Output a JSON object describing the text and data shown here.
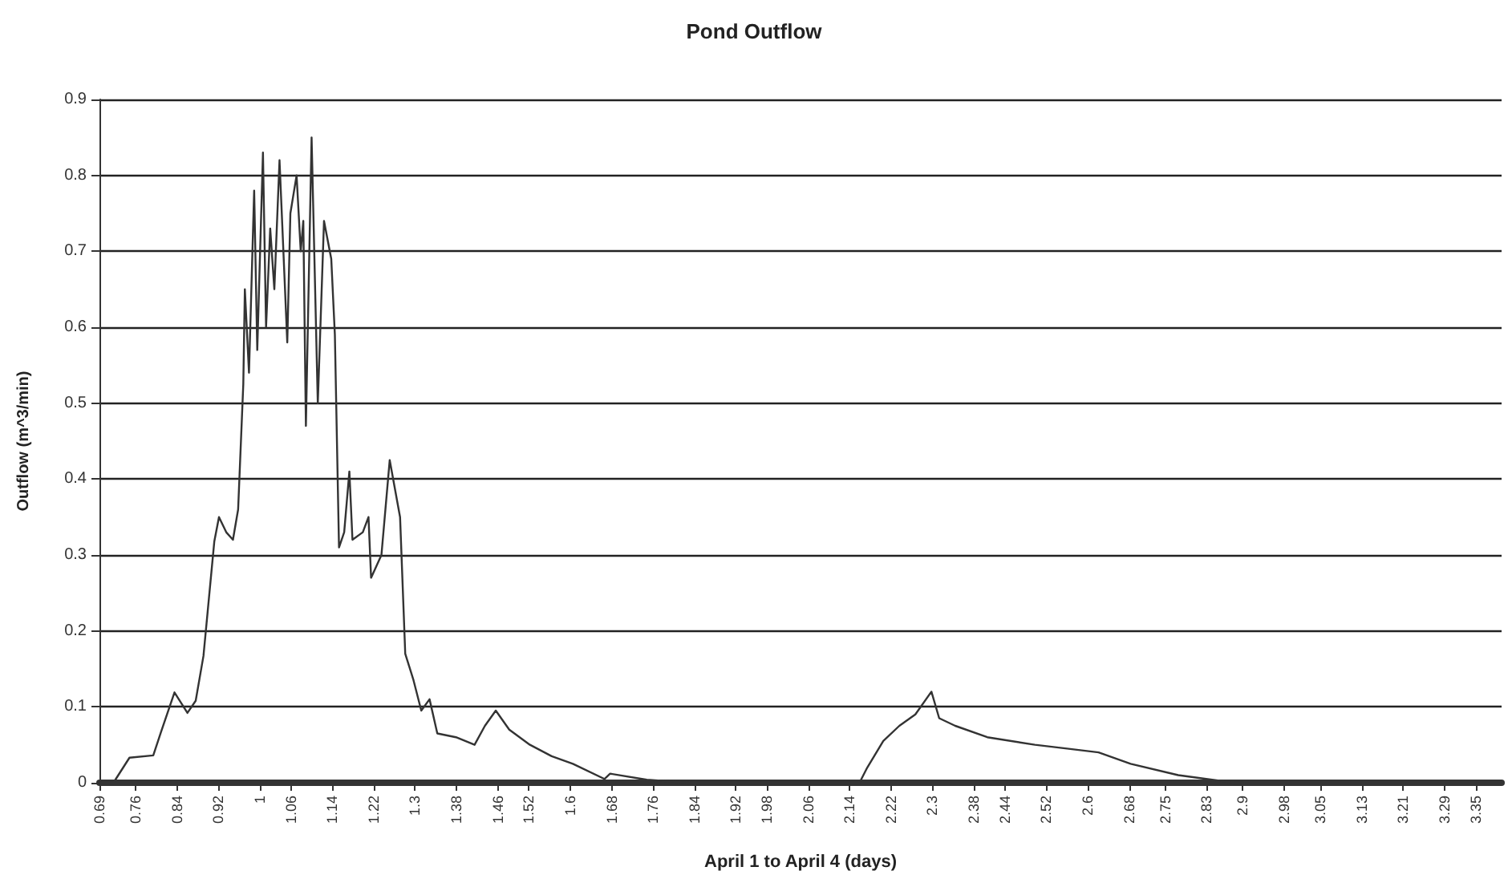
{
  "chart_data": {
    "type": "line",
    "title": "Pond Outflow",
    "xlabel": "April 1 to April 4 (days)",
    "ylabel": "Outflow (m^3/min)",
    "xlim": [
      0.69,
      3.4
    ],
    "xticks": [
      0.69,
      0.76,
      0.84,
      0.92,
      1,
      1.06,
      1.14,
      1.22,
      1.3,
      1.38,
      1.46,
      1.52,
      1.6,
      1.68,
      1.76,
      1.84,
      1.92,
      1.98,
      2.06,
      2.14,
      2.22,
      2.3,
      2.38,
      2.44,
      2.52,
      2.6,
      2.68,
      2.75,
      2.83,
      2.9,
      2.98,
      3.05,
      3.13,
      3.21,
      3.29,
      3.35
    ],
    "ylim": [
      0,
      0.9
    ],
    "yticks": [
      0,
      0.1,
      0.2,
      0.3,
      0.4,
      0.5,
      0.6,
      0.7,
      0.8,
      0.9
    ],
    "grid": "y",
    "marker": "none",
    "line_style": "solid",
    "series": [
      {
        "color": "#333333",
        "x": [
          0.69,
          0.717,
          0.748,
          0.794,
          0.809,
          0.835,
          0.86,
          0.876,
          0.891,
          0.912,
          0.921,
          0.935,
          0.948,
          0.958,
          0.968,
          0.971,
          0.979,
          0.989,
          0.995,
          1.006,
          1.012,
          1.02,
          1.028,
          1.038,
          1.053,
          1.059,
          1.071,
          1.079,
          1.084,
          1.089,
          1.1,
          1.112,
          1.124,
          1.138,
          1.145,
          1.153,
          1.163,
          1.173,
          1.179,
          1.199,
          1.21,
          1.215,
          1.235,
          1.251,
          1.271,
          1.281,
          1.297,
          1.312,
          1.328,
          1.343,
          1.379,
          1.415,
          1.435,
          1.456,
          1.482,
          1.522,
          1.564,
          1.605,
          1.666,
          1.677,
          1.748,
          1.83,
          2.0,
          2.159,
          2.174,
          2.205,
          2.236,
          2.267,
          2.298,
          2.313,
          2.344,
          2.406,
          2.498,
          2.56,
          2.621,
          2.683,
          2.775,
          2.883,
          2.9
        ],
        "values": [
          0,
          0,
          0.033,
          0.036,
          0.067,
          0.119,
          0.092,
          0.108,
          0.167,
          0.318,
          0.35,
          0.33,
          0.32,
          0.36,
          0.525,
          0.65,
          0.54,
          0.78,
          0.57,
          0.83,
          0.6,
          0.73,
          0.65,
          0.82,
          0.58,
          0.75,
          0.8,
          0.7,
          0.74,
          0.47,
          0.85,
          0.5,
          0.74,
          0.69,
          0.59,
          0.31,
          0.33,
          0.41,
          0.32,
          0.33,
          0.35,
          0.27,
          0.3,
          0.425,
          0.35,
          0.17,
          0.135,
          0.095,
          0.11,
          0.065,
          0.06,
          0.05,
          0.075,
          0.095,
          0.07,
          0.05,
          0.035,
          0.025,
          0.005,
          0.012,
          0.004,
          0,
          0,
          0,
          0.02,
          0.055,
          0.075,
          0.09,
          0.12,
          0.085,
          0.075,
          0.06,
          0.05,
          0.045,
          0.04,
          0.025,
          0.01,
          0,
          0
        ]
      }
    ]
  }
}
